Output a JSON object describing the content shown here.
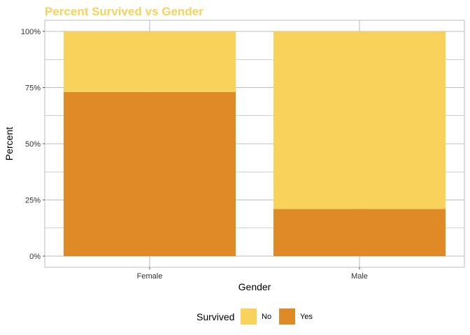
{
  "chart_data": {
    "type": "bar",
    "stacked": true,
    "percent": true,
    "title": "Percent Survived vs Gender",
    "xlabel": "Gender",
    "ylabel": "Percent",
    "categories": [
      "Female",
      "Male"
    ],
    "series": [
      {
        "name": "No",
        "values": [
          27,
          79
        ],
        "color": "#F8D25B"
      },
      {
        "name": "Yes",
        "values": [
          73,
          21
        ],
        "color": "#DF8A26"
      }
    ],
    "ylim": [
      0,
      100
    ],
    "yticks": [
      0,
      25,
      50,
      75,
      100
    ],
    "ytick_labels": [
      "0%",
      "25%",
      "50%",
      "75%",
      "100%"
    ],
    "grid": true,
    "legend": {
      "title": "Survived",
      "position": "bottom",
      "items": [
        {
          "label": "No",
          "color": "#F8D25B"
        },
        {
          "label": "Yes",
          "color": "#DF8A26"
        }
      ]
    },
    "title_color": "#F8D25B",
    "grid_color": "#A6A6A6",
    "panel_border_color": "#BEBEBE"
  }
}
